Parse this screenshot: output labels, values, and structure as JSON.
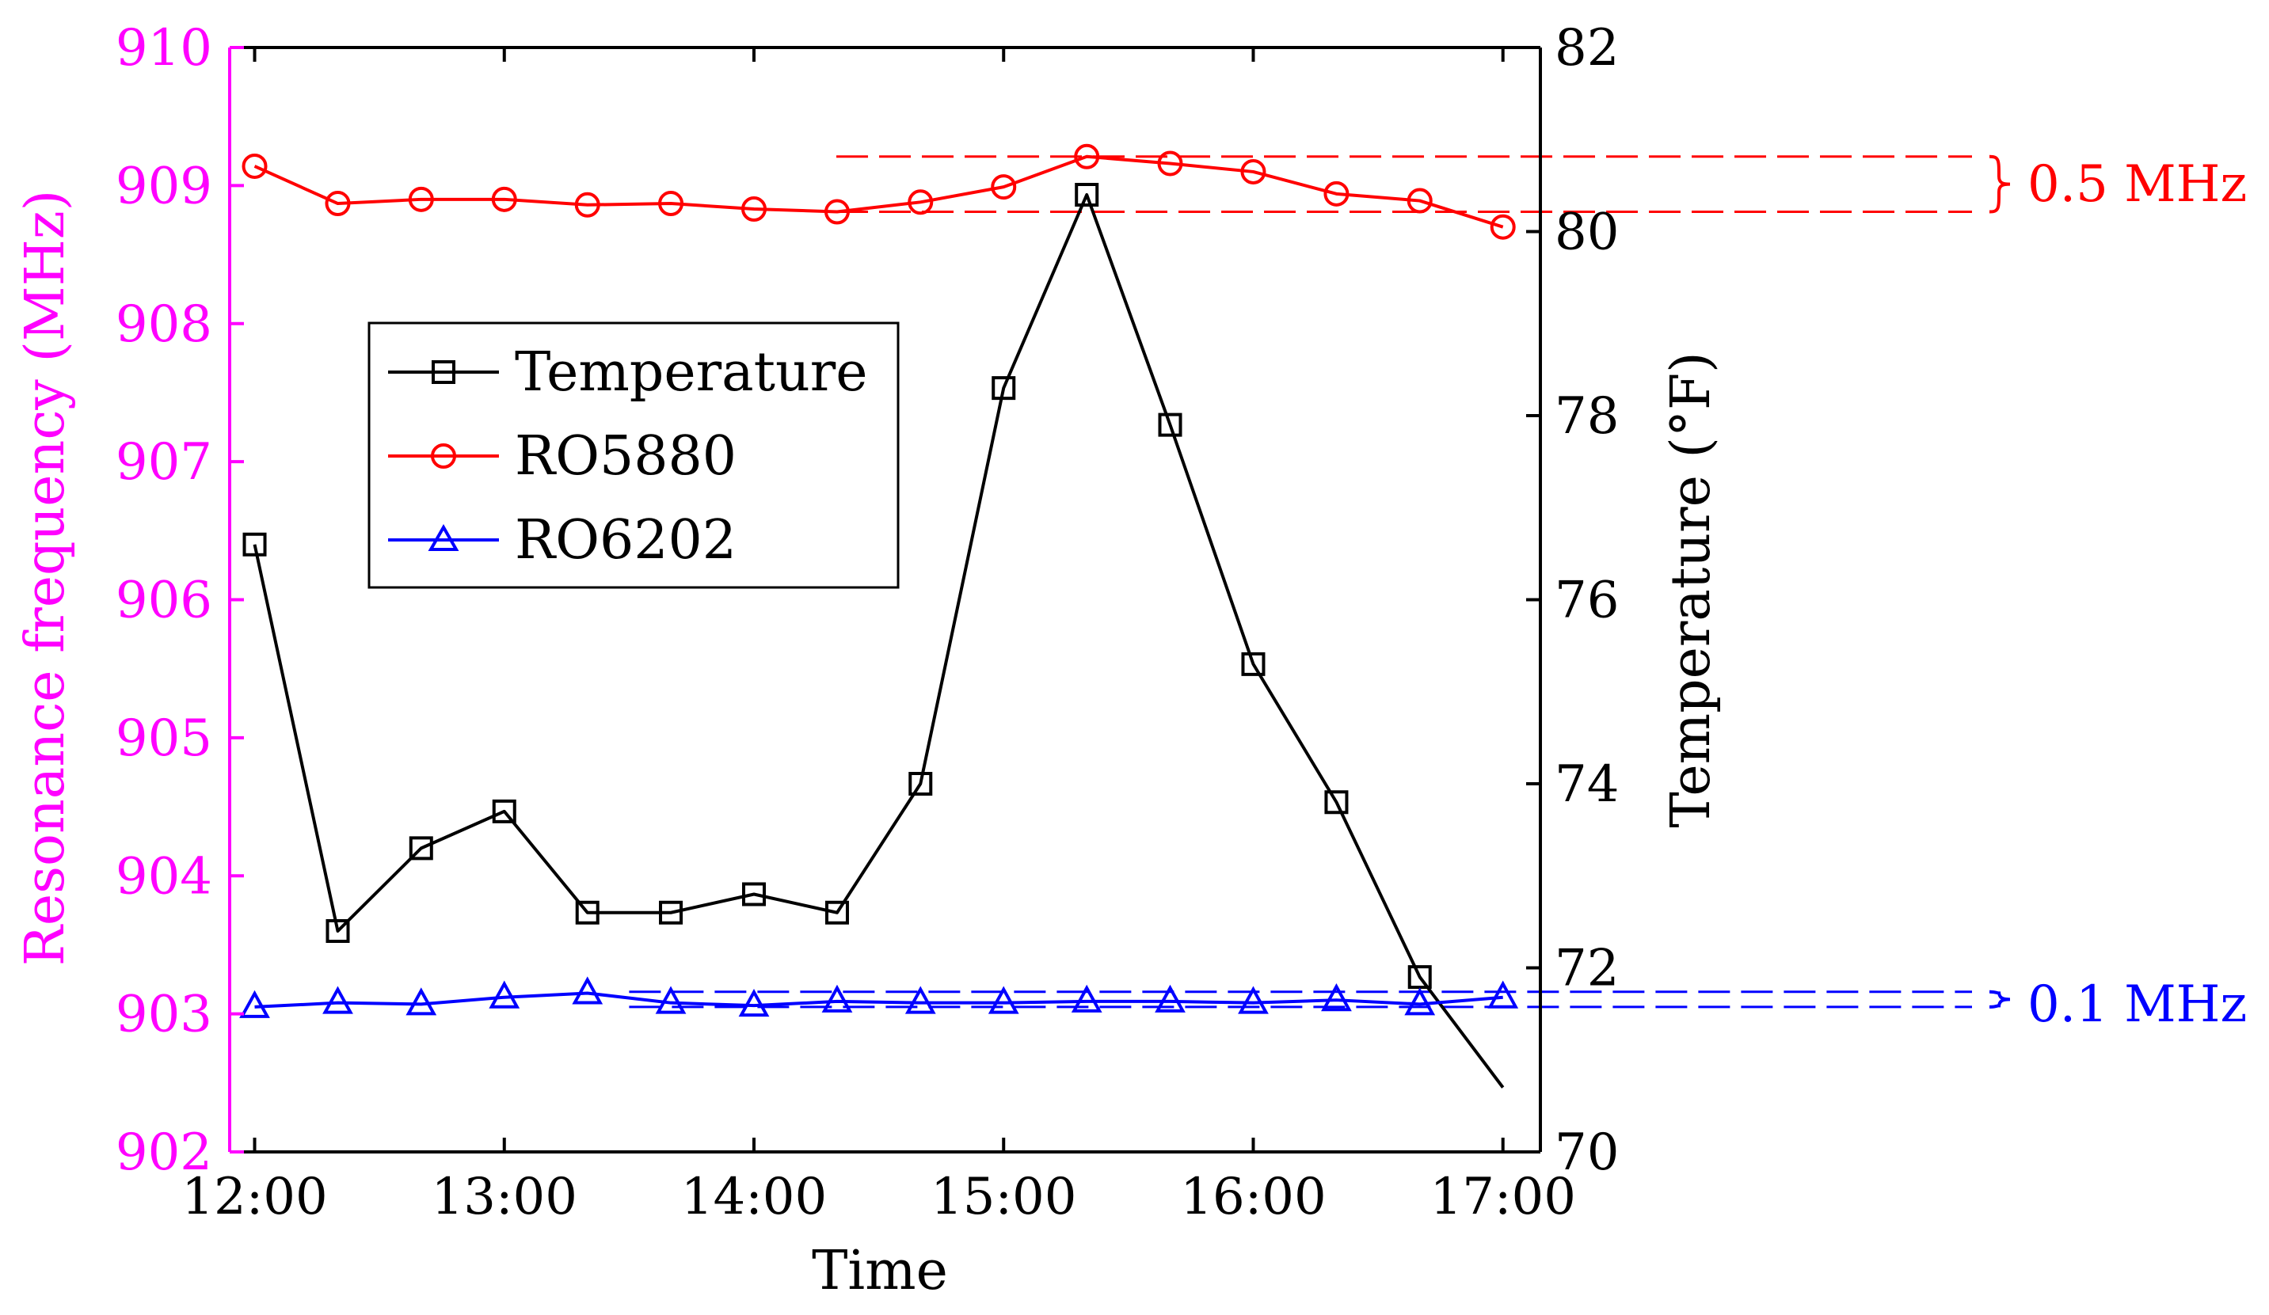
{
  "chart_data": {
    "type": "line",
    "title": "",
    "xlabel": "Time",
    "ylabel_left": "Resonance frequency (MHz)",
    "ylabel_right": "Temperature (°F)",
    "x_ticks": [
      "12:00",
      "13:00",
      "14:00",
      "15:00",
      "16:00",
      "17:00"
    ],
    "x_range_hours": [
      11.9,
      17.15
    ],
    "ylim_left": [
      902,
      910
    ],
    "yticks_left": [
      "902",
      "903",
      "904",
      "905",
      "906",
      "907",
      "908",
      "909",
      "910"
    ],
    "ylim_right": [
      70,
      82
    ],
    "yticks_right": [
      "70",
      "72",
      "74",
      "76",
      "78",
      "80",
      "82"
    ],
    "x_hours": [
      12.0,
      12.333,
      12.667,
      13.0,
      13.333,
      13.667,
      14.0,
      14.333,
      14.667,
      15.0,
      15.333,
      15.667,
      16.0,
      16.333,
      16.667,
      17.0
    ],
    "legend_position": "center-left",
    "colors": {
      "left_axis": "#ff00ff",
      "right_axis": "#000000",
      "temperature": "#000000",
      "ro5880": "#ff0000",
      "ro6202": "#0000ff"
    },
    "series": [
      {
        "name": "Temperature",
        "axis": "right",
        "marker": "square",
        "values": [
          76.6,
          72.4,
          73.3,
          73.7,
          72.6,
          72.6,
          72.8,
          72.6,
          74.0,
          78.3,
          80.4,
          77.9,
          75.3,
          73.8,
          71.9,
          null
        ],
        "line_end_value": 70.7
      },
      {
        "name": "RO5880",
        "axis": "left",
        "marker": "circle",
        "values": [
          909.14,
          908.87,
          908.9,
          908.9,
          908.86,
          908.87,
          908.83,
          908.81,
          908.88,
          908.99,
          909.21,
          909.16,
          909.1,
          908.94,
          908.89,
          908.7
        ]
      },
      {
        "name": "RO6202",
        "axis": "left",
        "marker": "triangle",
        "values": [
          903.05,
          903.08,
          903.07,
          903.12,
          903.15,
          903.08,
          903.06,
          903.09,
          903.08,
          903.08,
          903.09,
          903.09,
          903.08,
          903.1,
          903.07,
          903.12
        ]
      }
    ],
    "annotations": [
      {
        "label": "0.5 MHz",
        "color": "#ff0000",
        "axis": "left",
        "upper": 909.21,
        "lower": 908.81,
        "from_hour": 14.33
      },
      {
        "label": "0.1 MHz",
        "color": "#0000ff",
        "axis": "left",
        "upper": 903.16,
        "lower": 903.05,
        "from_hour": 13.5
      }
    ]
  }
}
